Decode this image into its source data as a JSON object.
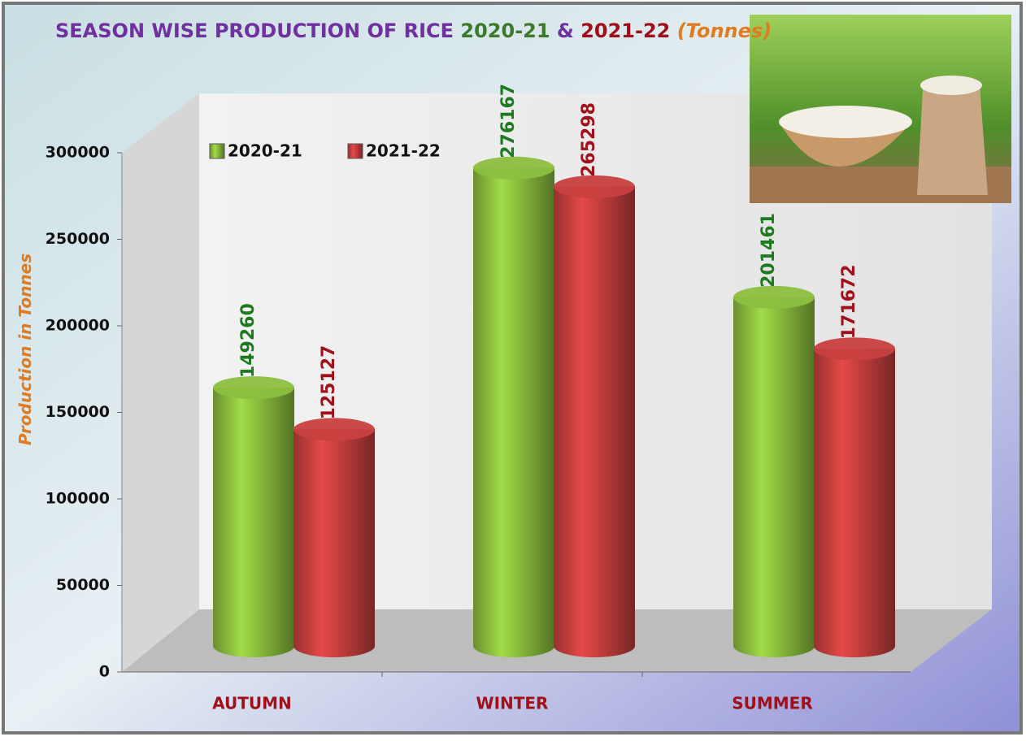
{
  "chart_data": {
    "type": "bar",
    "title": [
      "SEASON WISE PRODUCTION OF RICE",
      "2020-21",
      "&",
      "2021-22",
      "(Tonnes)"
    ],
    "y_label": "Production in Tonnes",
    "categories": [
      "AUTUMN",
      "WINTER",
      "SUMMER"
    ],
    "series": [
      {
        "name": "2020-21",
        "color": "#8cbf3f",
        "values": [
          149260,
          276167,
          201461
        ]
      },
      {
        "name": "2021-22",
        "color": "#c8403f",
        "values": [
          125127,
          265298,
          171672
        ]
      }
    ],
    "ylim": [
      0,
      300000
    ],
    "yticks": [
      0,
      50000,
      100000,
      150000,
      200000,
      250000,
      300000
    ],
    "grid": false
  }
}
